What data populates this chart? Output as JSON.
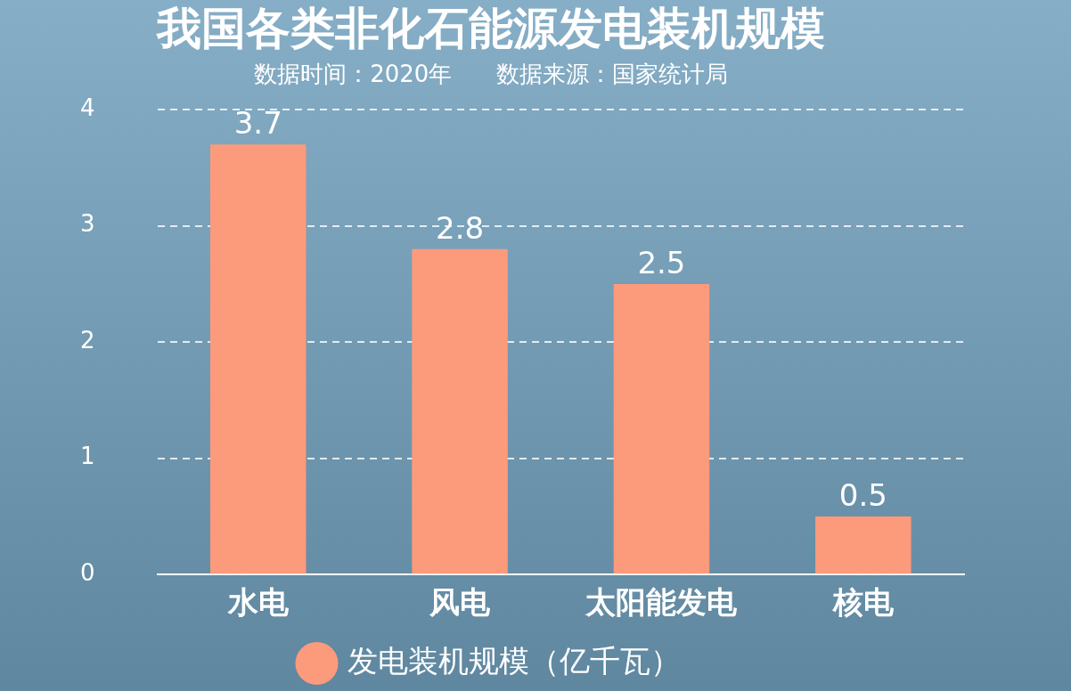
{
  "chart_data": {
    "type": "bar",
    "title": "我国各类非化石能源发电装机规模",
    "subtitle": "数据时间：2020年      数据来源：国家统计局",
    "categories": [
      "水电",
      "风电",
      "太阳能发电",
      "核电"
    ],
    "series": [
      {
        "name": "发电装机规模（亿千瓦）",
        "color": "#fc9a7c",
        "values": [
          3.7,
          2.8,
          2.5,
          0.5
        ]
      }
    ],
    "ylim": [
      0,
      4
    ],
    "yticks": [
      0,
      1,
      2,
      3,
      4
    ],
    "grid": "y",
    "legend": "bottom",
    "data_labels": true
  }
}
